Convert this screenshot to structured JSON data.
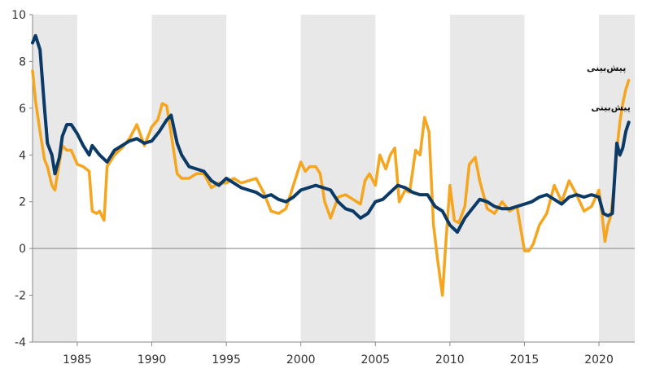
{
  "chart_data": {
    "type": "line",
    "title": "",
    "xlabel": "",
    "ylabel": "",
    "xlim": [
      1982.0,
      2022.4
    ],
    "ylim": [
      -4,
      10
    ],
    "yticks": [
      -4,
      -2,
      0,
      2,
      4,
      6,
      8,
      10
    ],
    "xticks": [
      1985,
      1990,
      1995,
      2000,
      2005,
      2010,
      2015,
      2020
    ],
    "grid": false,
    "legend": "none",
    "zero_line": true,
    "shaded_bands": [
      [
        1982.0,
        1985.0
      ],
      [
        1990.0,
        1995.0
      ],
      [
        2000.0,
        2005.0
      ],
      [
        2010.0,
        2015.0
      ],
      [
        2020.0,
        2022.4
      ]
    ],
    "annotations": [
      {
        "text": "پیش‌بینی",
        "x": 2020.5,
        "y": 7.6
      },
      {
        "text": "پیش‌بینی",
        "x": 2020.8,
        "y": 5.9
      }
    ],
    "series": [
      {
        "color": "#F5A51E",
        "x": [
          1982.0,
          1982.2,
          1982.5,
          1982.8,
          1983.0,
          1983.3,
          1983.5,
          1983.7,
          1984.0,
          1984.3,
          1984.6,
          1985.0,
          1985.4,
          1985.8,
          1986.0,
          1986.3,
          1986.5,
          1986.8,
          1987.0,
          1987.5,
          1988.0,
          1988.5,
          1989.0,
          1989.5,
          1990.0,
          1990.4,
          1990.7,
          1991.0,
          1991.3,
          1991.7,
          1992.0,
          1992.5,
          1993.0,
          1993.5,
          1994.0,
          1994.5,
          1995.0,
          1995.5,
          1996.0,
          1996.5,
          1997.0,
          1997.5,
          1998.0,
          1998.5,
          1999.0,
          1999.5,
          2000.0,
          2000.3,
          2000.6,
          2001.0,
          2001.3,
          2001.6,
          2002.0,
          2002.5,
          2003.0,
          2003.5,
          2004.0,
          2004.3,
          2004.6,
          2005.0,
          2005.3,
          2005.7,
          2006.0,
          2006.3,
          2006.6,
          2007.0,
          2007.3,
          2007.7,
          2008.0,
          2008.3,
          2008.6,
          2008.9,
          2009.2,
          2009.5,
          2009.7,
          2010.0,
          2010.3,
          2010.6,
          2011.0,
          2011.3,
          2011.7,
          2012.0,
          2012.5,
          2013.0,
          2013.5,
          2014.0,
          2014.5,
          2015.0,
          2015.3,
          2015.6,
          2016.0,
          2016.5,
          2017.0,
          2017.5,
          2018.0,
          2018.5,
          2019.0,
          2019.5,
          2020.0,
          2020.2,
          2020.4,
          2020.6,
          2020.8,
          2021.0,
          2021.2,
          2021.4,
          2021.6,
          2021.8,
          2022.0
        ],
        "y": [
          7.6,
          6.3,
          5.0,
          3.8,
          3.5,
          2.7,
          2.5,
          3.3,
          4.4,
          4.2,
          4.2,
          3.6,
          3.5,
          3.3,
          1.6,
          1.5,
          1.6,
          1.2,
          3.5,
          4.0,
          4.3,
          4.7,
          5.3,
          4.4,
          5.2,
          5.5,
          6.2,
          6.1,
          4.9,
          3.2,
          3.0,
          3.0,
          3.2,
          3.2,
          2.6,
          2.8,
          2.8,
          3.0,
          2.8,
          2.9,
          3.0,
          2.4,
          1.6,
          1.5,
          1.7,
          2.7,
          3.7,
          3.3,
          3.5,
          3.5,
          3.2,
          2.0,
          1.3,
          2.2,
          2.3,
          2.1,
          1.9,
          2.9,
          3.2,
          2.7,
          4.0,
          3.4,
          4.0,
          4.3,
          2.0,
          2.5,
          2.4,
          4.2,
          4.0,
          5.6,
          5.0,
          1.0,
          -0.6,
          -2.0,
          0.0,
          2.7,
          1.2,
          1.1,
          1.8,
          3.6,
          3.9,
          2.9,
          1.7,
          1.5,
          2.0,
          1.6,
          1.8,
          -0.1,
          -0.1,
          0.2,
          1.0,
          1.5,
          2.7,
          2.0,
          2.9,
          2.3,
          1.6,
          1.8,
          2.5,
          1.5,
          0.3,
          1.0,
          1.4,
          2.6,
          4.2,
          5.4,
          6.2,
          6.8,
          7.2
        ]
      },
      {
        "color": "#0B3A66",
        "x": [
          1982.0,
          1982.2,
          1982.5,
          1982.8,
          1983.0,
          1983.3,
          1983.5,
          1983.8,
          1984.0,
          1984.3,
          1984.6,
          1985.0,
          1985.4,
          1985.8,
          1986.0,
          1986.5,
          1987.0,
          1987.5,
          1988.0,
          1988.5,
          1989.0,
          1989.5,
          1990.0,
          1990.5,
          1990.8,
          1991.0,
          1991.3,
          1991.7,
          1992.0,
          1992.5,
          1993.0,
          1993.5,
          1994.0,
          1994.5,
          1995.0,
          1995.5,
          1996.0,
          1996.5,
          1997.0,
          1997.5,
          1998.0,
          1998.5,
          1999.0,
          1999.5,
          2000.0,
          2000.5,
          2001.0,
          2001.5,
          2002.0,
          2002.5,
          2003.0,
          2003.5,
          2004.0,
          2004.5,
          2005.0,
          2005.5,
          2006.0,
          2006.5,
          2007.0,
          2007.5,
          2008.0,
          2008.5,
          2009.0,
          2009.5,
          2010.0,
          2010.5,
          2011.0,
          2011.5,
          2012.0,
          2012.5,
          2013.0,
          2013.5,
          2014.0,
          2014.5,
          2015.0,
          2015.5,
          2016.0,
          2016.5,
          2017.0,
          2017.5,
          2018.0,
          2018.5,
          2019.0,
          2019.5,
          2020.0,
          2020.3,
          2020.6,
          2020.9,
          2021.2,
          2021.4,
          2021.6,
          2021.8,
          2022.0
        ],
        "y": [
          8.8,
          9.1,
          8.5,
          6.0,
          4.5,
          4.0,
          3.2,
          3.9,
          4.8,
          5.3,
          5.3,
          4.9,
          4.4,
          4.0,
          4.4,
          4.0,
          3.7,
          4.2,
          4.4,
          4.6,
          4.7,
          4.5,
          4.6,
          5.0,
          5.3,
          5.5,
          5.7,
          4.5,
          4.0,
          3.5,
          3.4,
          3.3,
          2.9,
          2.7,
          3.0,
          2.8,
          2.6,
          2.5,
          2.4,
          2.2,
          2.3,
          2.1,
          2.0,
          2.2,
          2.5,
          2.6,
          2.7,
          2.6,
          2.5,
          2.0,
          1.7,
          1.6,
          1.3,
          1.5,
          2.0,
          2.1,
          2.4,
          2.7,
          2.6,
          2.4,
          2.3,
          2.3,
          1.8,
          1.6,
          1.0,
          0.7,
          1.3,
          1.7,
          2.1,
          2.0,
          1.8,
          1.7,
          1.7,
          1.8,
          1.9,
          2.0,
          2.2,
          2.3,
          2.1,
          1.9,
          2.2,
          2.3,
          2.2,
          2.3,
          2.2,
          1.5,
          1.4,
          1.5,
          4.5,
          4.0,
          4.3,
          5.0,
          5.4
        ]
      }
    ]
  }
}
